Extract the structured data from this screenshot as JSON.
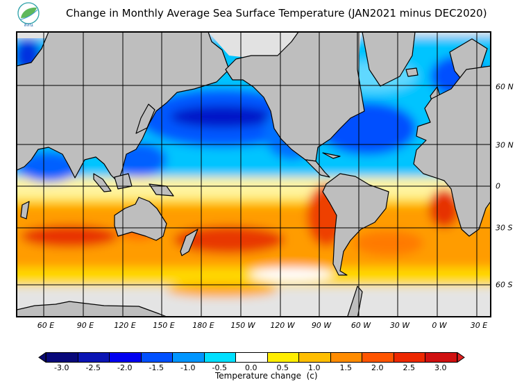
{
  "title": "Change in Monthly Average Sea Surface Temperature (JAN2021 minus DEC2020)",
  "logo": {
    "text": "สสน",
    "icon": "leaf-logo-icon"
  },
  "map": {
    "projection": "world, Pacific-centred",
    "lon_labels": [
      "60 E",
      "90 E",
      "120 E",
      "150 E",
      "180 E",
      "150 W",
      "120 W",
      "90 W",
      "60 W",
      "30 W",
      "0 W",
      "30 E"
    ],
    "lat_labels": [
      "60 N",
      "30 N",
      "0",
      "30 S",
      "60 S"
    ],
    "land_color": "#bebebe",
    "no_data_color": "#e0e0e0"
  },
  "legend": {
    "title": "Temperature change  (c)",
    "under_color": "#0a0a70",
    "over_color": "#e02020",
    "items": [
      {
        "label": "-3.0",
        "color": "#08087a"
      },
      {
        "label": "-2.5",
        "color": "#0a14b4"
      },
      {
        "label": "-2.0",
        "color": "#0000f0"
      },
      {
        "label": "-1.5",
        "color": "#0050ff"
      },
      {
        "label": "-1.0",
        "color": "#0096ff"
      },
      {
        "label": "-0.5",
        "color": "#00e0ff"
      },
      {
        "label": "0.0",
        "color": "#ffffff"
      },
      {
        "label": "0.5",
        "color": "#ffee00"
      },
      {
        "label": "1.0",
        "color": "#ffbe00"
      },
      {
        "label": "1.5",
        "color": "#ff8c00"
      },
      {
        "label": "2.0",
        "color": "#ff5500"
      },
      {
        "label": "2.5",
        "color": "#ee2800"
      },
      {
        "label": "3.0",
        "color": "#d01010"
      }
    ]
  }
}
